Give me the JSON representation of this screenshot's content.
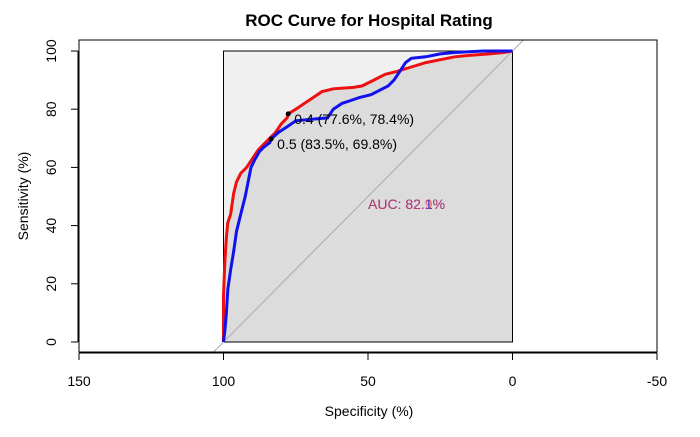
{
  "chart_data": {
    "type": "line",
    "title": "ROC Curve for Hospital Rating",
    "xlabel": "Specificity (%)",
    "ylabel": "Sensitivity (%)",
    "xlim": [
      150,
      -50
    ],
    "ylim": [
      0,
      100
    ],
    "x_ticks": [
      "150",
      "100",
      "50",
      "0",
      "-50"
    ],
    "x_tick_values": [
      150,
      100,
      50,
      0,
      -50
    ],
    "y_ticks": [
      "0",
      "20",
      "40",
      "60",
      "80",
      "100"
    ],
    "y_tick_values": [
      0,
      20,
      40,
      60,
      80,
      100
    ],
    "grid": false,
    "legend": "none",
    "colors": {
      "red": "#ee1111",
      "blue": "#1111ee",
      "auc_blue": "#2222dd",
      "auc_red": "#ee4444",
      "fill_dark": "#dcdcdc",
      "fill_light": "#f0f0f0",
      "diagonal": "#aaaaaa"
    },
    "series": [
      {
        "color": "#ee1111",
        "points": [
          [
            100,
            0
          ],
          [
            100,
            16
          ],
          [
            99.5,
            28
          ],
          [
            99,
            36
          ],
          [
            98.5,
            41
          ],
          [
            97.5,
            44
          ],
          [
            96.5,
            51
          ],
          [
            95.5,
            55
          ],
          [
            94,
            58
          ],
          [
            92,
            60
          ],
          [
            90,
            63
          ],
          [
            88,
            66
          ],
          [
            86,
            68
          ],
          [
            84,
            70
          ],
          [
            82,
            72
          ],
          [
            80,
            75
          ],
          [
            78,
            77
          ],
          [
            77.6,
            78.4
          ],
          [
            75,
            80
          ],
          [
            72,
            82
          ],
          [
            69,
            84
          ],
          [
            66,
            86
          ],
          [
            62,
            87
          ],
          [
            55,
            87.5
          ],
          [
            52,
            88
          ],
          [
            48,
            90
          ],
          [
            44,
            92
          ],
          [
            40,
            93
          ],
          [
            35,
            94.5
          ],
          [
            30,
            96
          ],
          [
            25,
            97
          ],
          [
            20,
            98
          ],
          [
            15,
            98.5
          ],
          [
            8,
            99
          ],
          [
            3,
            99.5
          ],
          [
            0,
            100
          ]
        ]
      },
      {
        "color": "#1111ee",
        "points": [
          [
            100,
            0
          ],
          [
            99.5,
            4
          ],
          [
            99,
            10
          ],
          [
            98.5,
            18
          ],
          [
            97.5,
            25
          ],
          [
            96.5,
            31
          ],
          [
            95.5,
            38
          ],
          [
            94,
            44
          ],
          [
            92.5,
            50
          ],
          [
            91.5,
            55
          ],
          [
            90.5,
            60
          ],
          [
            89,
            63
          ],
          [
            87.5,
            65.5
          ],
          [
            86,
            67
          ],
          [
            84,
            68.5
          ],
          [
            83.5,
            69.8
          ],
          [
            81,
            72
          ],
          [
            78,
            74
          ],
          [
            75,
            76
          ],
          [
            70,
            76.5
          ],
          [
            64,
            77
          ],
          [
            62,
            80
          ],
          [
            59,
            82
          ],
          [
            56,
            83
          ],
          [
            53,
            84
          ],
          [
            49,
            85
          ],
          [
            46,
            86.5
          ],
          [
            43,
            88
          ],
          [
            41,
            90
          ],
          [
            39,
            93
          ],
          [
            37,
            96
          ],
          [
            35,
            97.5
          ],
          [
            30,
            98
          ],
          [
            25,
            99
          ],
          [
            20,
            99.5
          ],
          [
            10,
            100
          ],
          [
            0,
            100
          ]
        ]
      }
    ],
    "annotations": [
      {
        "text": "0.4 (77.6%, 78.4%)",
        "x": 77.6,
        "y": 78.4
      },
      {
        "text": "0.5 (83.5%, 69.8%)",
        "x": 83.5,
        "y": 69.8
      }
    ],
    "auc_labels": [
      {
        "text": "AUC: 82.1%",
        "color": "#2222dd"
      },
      {
        "text": "AUC: 82.9%",
        "color": "#ee4444"
      }
    ]
  }
}
